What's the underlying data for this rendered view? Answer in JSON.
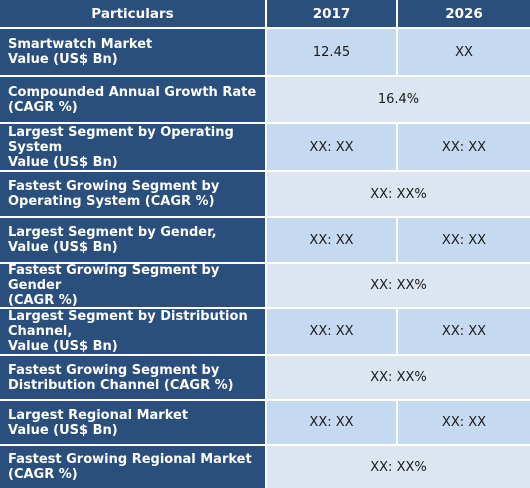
{
  "header": {
    "particulars": "Particulars",
    "year1": "2017",
    "year2": "2026"
  },
  "rows": [
    {
      "label": "Smartwatch Market\nValue (US$ Bn)",
      "v2017": "12.45",
      "v2026": "XX"
    },
    {
      "label": "Compounded Annual Growth Rate\n(CAGR %)",
      "merged": "16.4%"
    },
    {
      "label": "Largest Segment by Operating\nSystem\nValue (US$ Bn)",
      "v2017": "XX: XX",
      "v2026": "XX:  XX"
    },
    {
      "label": "Fastest Growing Segment by\nOperating System (CAGR %)",
      "merged": "XX:  XX%"
    },
    {
      "label": "Largest Segment by Gender,\nValue (US$ Bn)",
      "v2017": "XX: XX",
      "v2026": "XX:  XX"
    },
    {
      "label": "Fastest Growing Segment by Gender\n(CAGR %)",
      "merged": "XX:  XX%"
    },
    {
      "label": "Largest Segment by Distribution\nChannel,\nValue (US$ Bn)",
      "v2017": "XX: XX",
      "v2026": "XX:  XX"
    },
    {
      "label": "Fastest Growing Segment by\nDistribution Channel (CAGR %)",
      "merged": "XX:  XX%"
    },
    {
      "label": "Largest Regional Market\nValue (US$ Bn)",
      "v2017": "XX: XX",
      "v2026": "XX:  XX"
    },
    {
      "label": "Fastest Growing Regional Market\n(CAGR %)",
      "merged": "XX: XX%"
    }
  ],
  "colors": {
    "header": "#2a4f7c",
    "row_light": "#dce6f1",
    "row_dark": "#c5d9f1",
    "border": "#ffffff"
  }
}
